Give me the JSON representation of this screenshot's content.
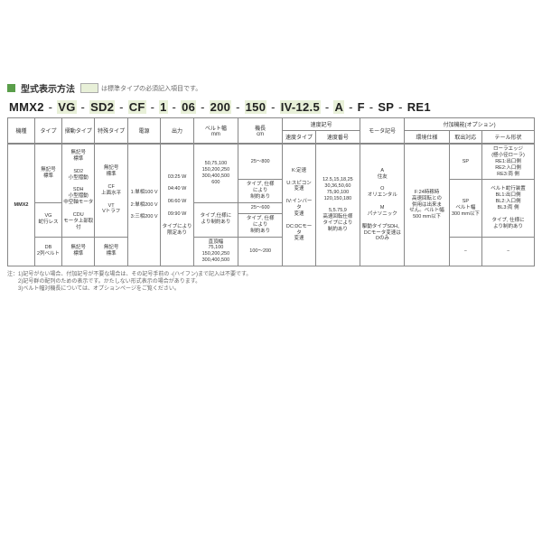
{
  "title": "型式表示方法",
  "hint_text": "は標準タイプの必須記入項目です。",
  "model_parts": [
    "MMX2",
    "VG",
    "SD2",
    "CF",
    "1",
    "06",
    "200",
    "150",
    "IV-12.5",
    "A",
    "F",
    "SP",
    "RE1"
  ],
  "model_hl": [
    false,
    true,
    true,
    true,
    true,
    true,
    true,
    true,
    true,
    true,
    false,
    false,
    false
  ],
  "hdr_group_speed": "速度記号",
  "hdr_group_option": "付加機能(オプション)",
  "hdr": {
    "c1": "機種",
    "c2": "タイプ",
    "c3": "摺動タイプ",
    "c4": "特殊タイプ",
    "c5": "電源",
    "c6": "出力",
    "c7": "ベルト幅\nmm",
    "c8": "機長\ncm",
    "c9": "速度タイプ",
    "c10": "速度番号",
    "c11": "モータ記号",
    "c12": "環境仕様",
    "c13": "取出対応",
    "c14": "テール形状"
  },
  "body": {
    "r1": {
      "c2": "無記号\n標準",
      "c3": "無記号\n標準\n\nSD2\n小型摺動\n\nSDH\n小型摺動\n中空軸モータ\n\nCDU\nモータ上部取付",
      "c4": "無記号\n標準\n\nCF\n上面水平\n\nVT\nVトラフ",
      "c5": "1:単相100 V\n\n2:単相200 V\n\n3:三相200 V",
      "c6": "03:25 W\n\n04:40 W\n\n06:60 W\n\n09:90 W\n\nタイプにより\n限定あり",
      "c7a": "50,75,100\n150,200,250\n300,400,500\n600",
      "c7b": "タイプ,仕様に\nより制約あり",
      "c7c": "直頂幅\n75,100\n150,200,250\n300,400,500",
      "c8a": "25〜800",
      "c8b": "タイプ, 仕様\nにより\n制約あり",
      "c8c": "25〜600",
      "c8d": "タイプ, 仕様\nにより\n制約あり",
      "c8e": "100〜200",
      "c9": "K:定速\n\nU:スピコン\n変速\n\nIV:インバータ\n変速\n\nDC:DCモータ\n変速",
      "c10": "12.5,15,18,25\n30,36,50,60\n75,90,100\n120,150,180\n\n5,5.75,9\n高速回転仕様\nタイプにより\n制約あり",
      "c11": "A\n住友\n\nO\nオリエンタル\n\nM\nパナソニック\n\n駆動タイプSDH、\nDCモータ変速は\nOのみ",
      "c12": "F:24時稼時\n高速回転との\n併用は出来ま\nせん。ベルト幅\n500 mm以下",
      "c13a": "SP",
      "c13b": "SP\nベルト幅\n300 mm以下",
      "c13c": "−",
      "c14a": "ローラエッジ\n(極小径ローラ)\nRE1:出口側\nRE2:入口側\nRE3:両 側",
      "c14b": "ベルト蛇行装置\nBL1:出口側\nBL2:入口側\nBL3:両 側\n\nタイプ, 仕様に\nより制約あり",
      "c14c": "−"
    },
    "c1": "MMX2",
    "r2c2": "VG\n蛇行レス",
    "r3c2": "DB\n2列ベルト",
    "r3c3": "無記号\n標準",
    "r3c4": "無記号\n標準"
  },
  "notes": [
    "注：1)記号がない場合、付加記号が不要な場合は、その記号手前の -(ハイフン)まで記入は不要です。",
    "　　2)記号群の配列のための表示です。かたしない形式表示の場合があります。",
    "　　3)ベルト幅対機長については、オプションページをご覧ください。"
  ],
  "colors": {
    "accent": "#5a9e4a",
    "hl": "#e8f0d8",
    "border": "#888",
    "text": "#333"
  }
}
